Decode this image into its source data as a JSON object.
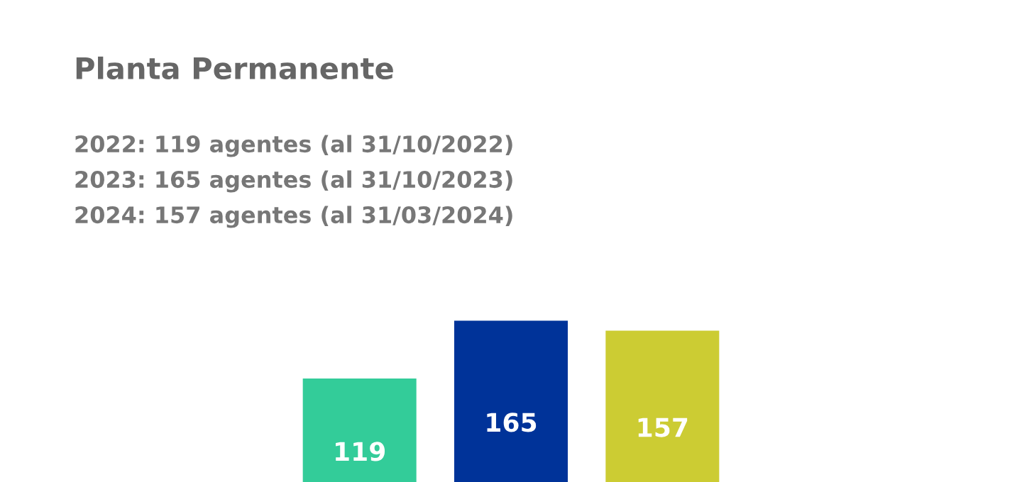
{
  "chart_data": {
    "type": "bar",
    "title": "Planta Permanente",
    "annotations": [
      "2022: 119 agentes (al 31/10/2022)",
      "2023: 165 agentes (al 31/10/2023)",
      "2024: 157 agentes (al 31/03/2024)"
    ],
    "categories": [
      null,
      null,
      null
    ],
    "values": [
      119,
      165,
      157
    ],
    "colors": [
      "#33cc99",
      "#003399",
      "#cccc33"
    ],
    "data_labels": true
  }
}
